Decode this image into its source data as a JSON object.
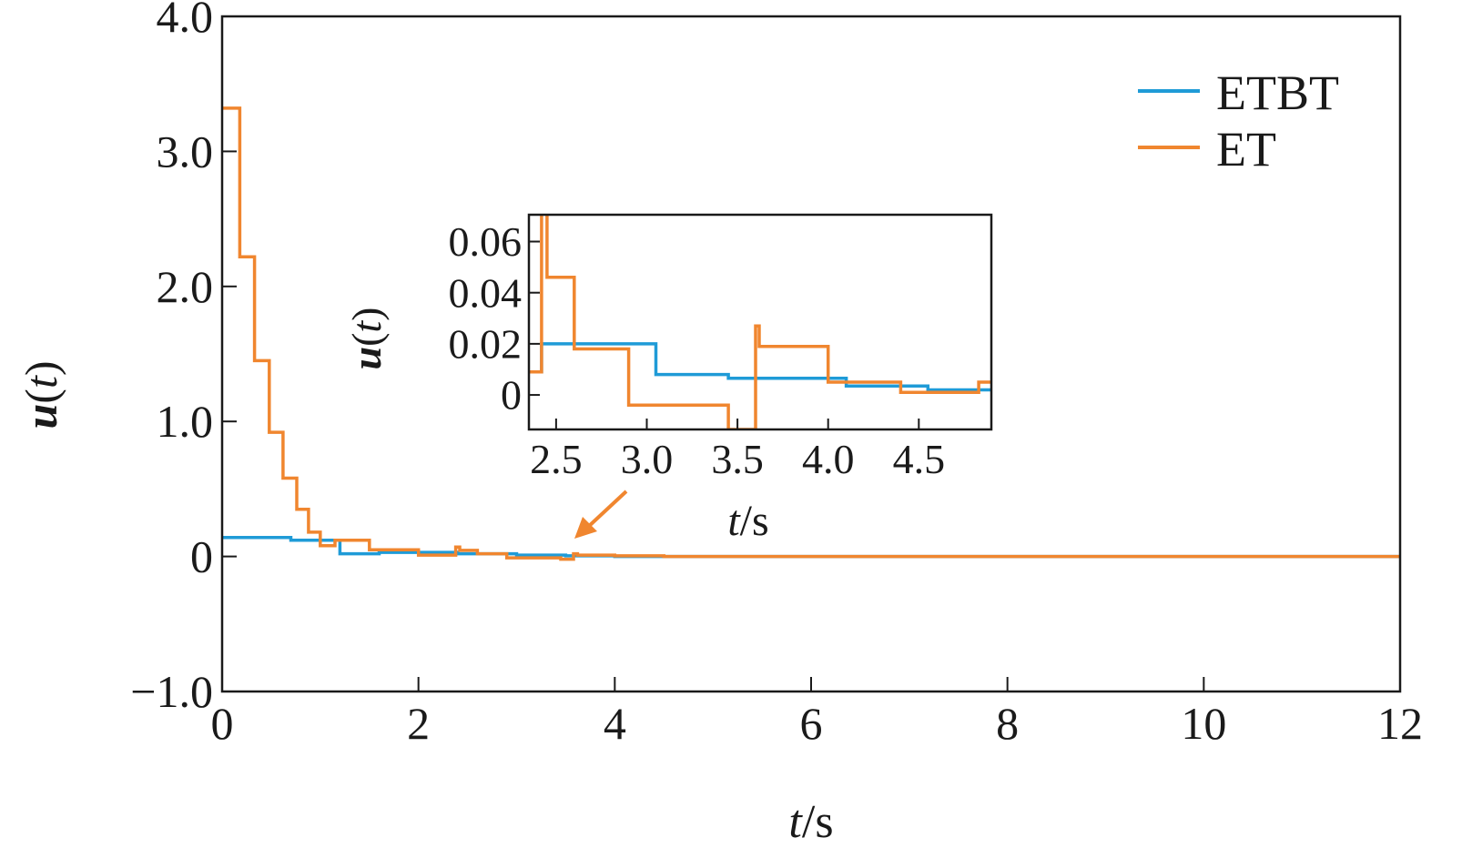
{
  "chart_data": [
    {
      "type": "line",
      "step": true,
      "xlim": [
        0,
        12
      ],
      "ylim": [
        -1.0,
        4.0
      ],
      "xticks": [
        0,
        2,
        4,
        6,
        8,
        10,
        12
      ],
      "xtick_labels": [
        "0",
        "2",
        "4",
        "6",
        "8",
        "10",
        "12"
      ],
      "yticks": [
        -1.0,
        0,
        1.0,
        2.0,
        3.0,
        4.0
      ],
      "ytick_labels": [
        "−1.0",
        "0",
        "1.0",
        "2.0",
        "3.0",
        "4.0"
      ],
      "xlabel": {
        "var": "t",
        "sep": "/",
        "unit": "s"
      },
      "ylabel": {
        "var": "u",
        "open": "(",
        "arg": "t",
        "close": ")"
      },
      "grid": false,
      "legend_position": "top-right",
      "series": [
        {
          "name": "ETBT",
          "color": "#1f9bd7",
          "x": [
            0,
            0.7,
            0.7,
            1.2,
            1.2,
            1.6,
            1.6,
            2.4,
            2.4,
            3.0,
            3.0,
            3.5,
            3.5,
            4.0,
            4.0,
            12
          ],
          "y": [
            0.14,
            0.14,
            0.12,
            0.12,
            0.02,
            0.02,
            0.03,
            0.03,
            0.02,
            0.02,
            0.01,
            0.01,
            0.005,
            0.005,
            0.0,
            0.0
          ]
        },
        {
          "name": "ET",
          "color": "#f0862f",
          "x": [
            0,
            0.18,
            0.18,
            0.33,
            0.33,
            0.48,
            0.48,
            0.62,
            0.62,
            0.76,
            0.76,
            0.88,
            0.88,
            1.0,
            1.0,
            1.15,
            1.15,
            1.5,
            1.5,
            2.0,
            2.0,
            2.38,
            2.38,
            2.42,
            2.42,
            2.6,
            2.6,
            2.9,
            2.9,
            3.45,
            3.45,
            3.58,
            3.58,
            3.62,
            3.62,
            4.0,
            4.0,
            4.5,
            4.5,
            12
          ],
          "y": [
            3.32,
            3.32,
            2.22,
            2.22,
            1.45,
            1.45,
            0.92,
            0.92,
            0.58,
            0.58,
            0.35,
            0.35,
            0.18,
            0.18,
            0.08,
            0.08,
            0.12,
            0.12,
            0.05,
            0.05,
            0.01,
            0.01,
            0.07,
            0.07,
            0.045,
            0.045,
            0.02,
            0.02,
            -0.01,
            -0.01,
            -0.02,
            -0.02,
            0.02,
            0.02,
            0.01,
            0.01,
            0.005,
            0.005,
            0.0,
            0.0
          ]
        }
      ]
    },
    {
      "type": "line",
      "step": true,
      "inset": true,
      "xlim": [
        2.35,
        4.9
      ],
      "ylim": [
        -0.0135,
        0.0705
      ],
      "xticks": [
        2.5,
        3.0,
        3.5,
        4.0,
        4.5
      ],
      "xtick_labels": [
        "2.5",
        "3.0",
        "3.5",
        "4.0",
        "4.5"
      ],
      "yticks": [
        0,
        0.02,
        0.04,
        0.06
      ],
      "ytick_labels": [
        "0",
        "0.02",
        "0.04",
        "0.06"
      ],
      "xlabel": {
        "var": "t",
        "sep": "/",
        "unit": "s"
      },
      "ylabel": {
        "var": "u",
        "open": "(",
        "arg": "t",
        "close": ")"
      },
      "series": [
        {
          "name": "ETBT",
          "color": "#1f9bd7",
          "x": [
            2.35,
            2.42,
            2.42,
            3.05,
            3.05,
            3.45,
            3.45,
            4.1,
            4.1,
            4.55,
            4.55,
            4.9
          ],
          "y": [
            0.009,
            0.009,
            0.02,
            0.02,
            0.008,
            0.008,
            0.0065,
            0.0065,
            0.0035,
            0.0035,
            0.002,
            0.002
          ]
        },
        {
          "name": "ET",
          "color": "#f0862f",
          "x": [
            2.35,
            2.42,
            2.42,
            2.45,
            2.45,
            2.6,
            2.6,
            2.9,
            2.9,
            3.45,
            3.45,
            3.6,
            3.6,
            3.62,
            3.62,
            4.0,
            4.0,
            4.4,
            4.4,
            4.83,
            4.83,
            4.9
          ],
          "y": [
            0.009,
            0.009,
            0.072,
            0.072,
            0.046,
            0.046,
            0.018,
            0.018,
            -0.004,
            -0.004,
            -0.0135,
            -0.0135,
            0.027,
            0.027,
            0.019,
            0.019,
            0.005,
            0.005,
            0.001,
            0.001,
            0.005,
            0.005
          ]
        }
      ]
    }
  ]
}
